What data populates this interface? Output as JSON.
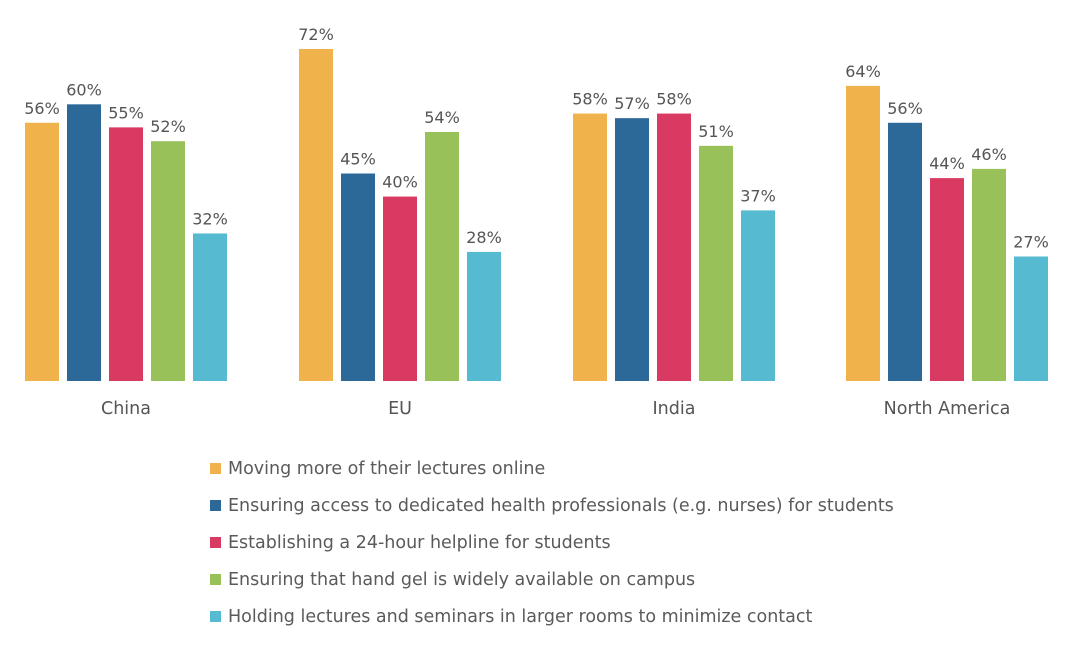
{
  "chart_data": {
    "type": "bar",
    "title": "",
    "xlabel": "",
    "ylabel": "",
    "ylim": [
      0,
      72
    ],
    "grid": false,
    "legend_position": "bottom",
    "categories": [
      "China",
      "EU",
      "India",
      "North America"
    ],
    "series": [
      {
        "name": "Moving more of their lectures online",
        "color": "#F0B24A",
        "values": [
          56,
          72,
          58,
          64
        ],
        "labels": [
          "56%",
          "72%",
          "58%",
          "64%"
        ]
      },
      {
        "name": "Ensuring access to dedicated health professionals (e.g. nurses) for students",
        "color": "#2C6898",
        "values": [
          60,
          45,
          57,
          56
        ],
        "labels": [
          "60%",
          "45%",
          "57%",
          "56%"
        ]
      },
      {
        "name": "Establishing a 24-hour helpline for students",
        "color": "#D93A62",
        "values": [
          55,
          40,
          58,
          44
        ],
        "labels": [
          "55%",
          "40%",
          "58%",
          "44%"
        ]
      },
      {
        "name": "Ensuring that hand gel is widely available on campus",
        "color": "#98C15A",
        "values": [
          52,
          54,
          51,
          46
        ],
        "labels": [
          "52%",
          "54%",
          "51%",
          "46%"
        ]
      },
      {
        "name": "Holding lectures and seminars in larger rooms to minimize contact",
        "color": "#56BAD0",
        "values": [
          32,
          28,
          37,
          27
        ],
        "labels": [
          "32%",
          "28%",
          "37%",
          "27%"
        ]
      }
    ]
  }
}
